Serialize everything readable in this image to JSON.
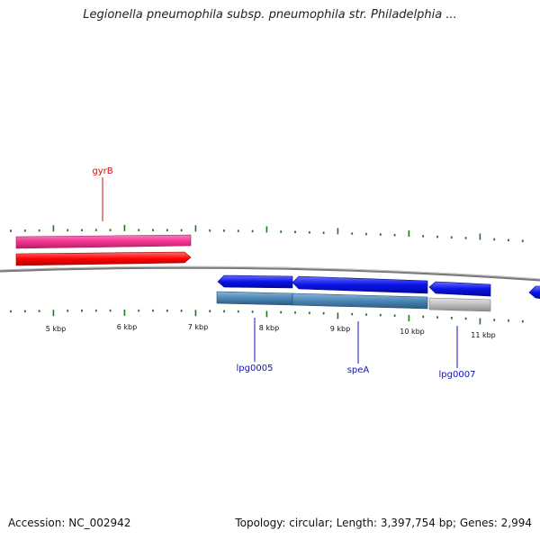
{
  "map": {
    "title": "Legionella pneumophila subsp. pneumophila str. Philadelphia ..."
  },
  "footer": {
    "accession_label": "Accession:",
    "accession": "NC_002942",
    "topology_label": "Topology:",
    "topology": "circular",
    "length_label": "Length:",
    "length": "3,397,754 bp",
    "genes_label": "Genes:",
    "genes": "2,994"
  },
  "scale": {
    "unit": "kbp",
    "labels": [
      "5 kbp",
      "6 kbp",
      "7 kbp",
      "8 kbp",
      "9 kbp",
      "10 kbp",
      "11 kbp"
    ]
  },
  "colors": {
    "backbone": "#7a7a7a",
    "tick": "#1a7a1a",
    "gene_forward_pink": "#f0328c",
    "gene_forward_red": "#ff0000",
    "gene_reverse_blue": "#0a14e6",
    "gene_steelblue": "#4a86b4",
    "gene_gray": "#bcbcbc",
    "label_red": "#d01010",
    "label_blue": "#1010c0"
  },
  "genes": [
    {
      "name": "gyrB",
      "strand": "forward",
      "label_color": "#d01010"
    },
    {
      "name": "lpg0005",
      "strand": "reverse",
      "label_color": "#1010c0"
    },
    {
      "name": "speA",
      "strand": "reverse",
      "label_color": "#1010c0"
    },
    {
      "name": "lpg0007",
      "strand": "reverse",
      "label_color": "#1010c0"
    }
  ]
}
